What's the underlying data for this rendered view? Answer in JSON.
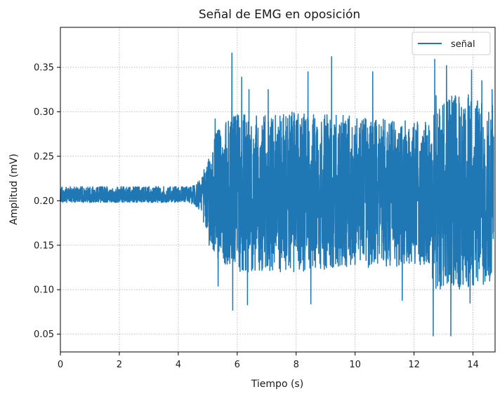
{
  "chart_data": {
    "type": "line",
    "title": "Señal de EMG en oposición",
    "xlabel": "Tiempo (s)",
    "ylabel": "Amplitud (mV)",
    "xlim": [
      0,
      14.75
    ],
    "ylim": [
      0.03,
      0.395
    ],
    "xticks": [
      0,
      2,
      4,
      6,
      8,
      10,
      12,
      14
    ],
    "yticks": [
      0.05,
      0.1,
      0.15,
      0.2,
      0.25,
      0.3,
      0.35
    ],
    "ytick_labels": [
      "0.05",
      "0.10",
      "0.15",
      "0.20",
      "0.25",
      "0.30",
      "0.35"
    ],
    "grid": true,
    "legend_position": "upper right",
    "color": "#1f77b4",
    "series": [
      {
        "name": "señal",
        "baseline": 0.205,
        "envelope": [
          {
            "x": 0.0,
            "max": 0.216,
            "min": 0.198
          },
          {
            "x": 4.4,
            "max": 0.216,
            "min": 0.198
          },
          {
            "x": 4.7,
            "max": 0.222,
            "min": 0.19
          },
          {
            "x": 5.0,
            "max": 0.245,
            "min": 0.16
          },
          {
            "x": 5.3,
            "max": 0.28,
            "min": 0.135
          },
          {
            "x": 6.0,
            "max": 0.3,
            "min": 0.12
          },
          {
            "x": 8.0,
            "max": 0.3,
            "min": 0.12
          },
          {
            "x": 10.0,
            "max": 0.295,
            "min": 0.125
          },
          {
            "x": 12.0,
            "max": 0.29,
            "min": 0.125
          },
          {
            "x": 12.5,
            "max": 0.29,
            "min": 0.13
          },
          {
            "x": 12.7,
            "max": 0.32,
            "min": 0.1
          },
          {
            "x": 14.0,
            "max": 0.32,
            "min": 0.1
          },
          {
            "x": 14.7,
            "max": 0.315,
            "min": 0.11
          }
        ],
        "peaks": [
          {
            "x": 5.05,
            "y": 0.15
          },
          {
            "x": 5.25,
            "y": 0.292
          },
          {
            "x": 5.35,
            "y": 0.104
          },
          {
            "x": 5.82,
            "y": 0.366
          },
          {
            "x": 5.85,
            "y": 0.077
          },
          {
            "x": 6.15,
            "y": 0.339
          },
          {
            "x": 6.35,
            "y": 0.083
          },
          {
            "x": 6.4,
            "y": 0.325
          },
          {
            "x": 7.05,
            "y": 0.105
          },
          {
            "x": 7.05,
            "y": 0.325
          },
          {
            "x": 8.4,
            "y": 0.345
          },
          {
            "x": 8.5,
            "y": 0.084
          },
          {
            "x": 9.2,
            "y": 0.362
          },
          {
            "x": 10.6,
            "y": 0.345
          },
          {
            "x": 11.6,
            "y": 0.088
          },
          {
            "x": 12.65,
            "y": 0.048
          },
          {
            "x": 12.7,
            "y": 0.359
          },
          {
            "x": 13.1,
            "y": 0.352
          },
          {
            "x": 13.25,
            "y": 0.048
          },
          {
            "x": 13.4,
            "y": 0.318
          },
          {
            "x": 13.9,
            "y": 0.085
          },
          {
            "x": 13.95,
            "y": 0.347
          },
          {
            "x": 14.3,
            "y": 0.335
          },
          {
            "x": 14.65,
            "y": 0.325
          }
        ]
      }
    ]
  }
}
